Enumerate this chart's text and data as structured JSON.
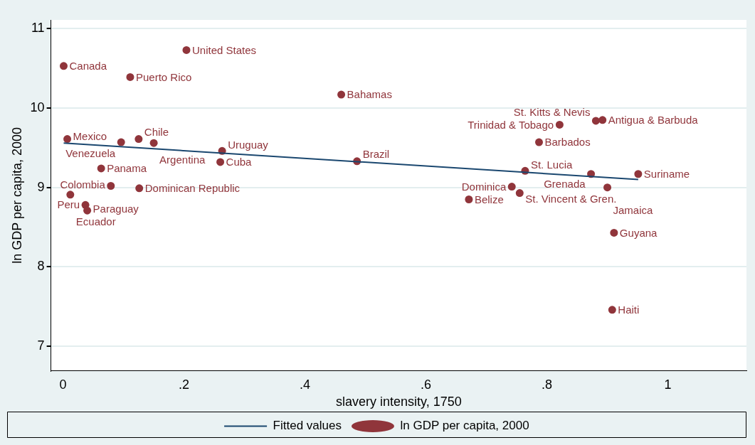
{
  "chart_data": {
    "type": "scatter",
    "xlabel": "slavery intensity, 1750",
    "ylabel": "ln GDP per capita, 2000",
    "xlim": [
      -0.02,
      1.13
    ],
    "ylim": [
      6.69,
      11.11
    ],
    "xticks": [
      {
        "value": 0,
        "label": "0"
      },
      {
        "value": 0.2,
        "label": ".2"
      },
      {
        "value": 0.4,
        "label": ".4"
      },
      {
        "value": 0.6,
        "label": ".6"
      },
      {
        "value": 0.8,
        "label": ".8"
      },
      1
    ],
    "yticks": [
      7,
      8,
      9,
      10,
      11
    ],
    "grid": "y",
    "legend": "bottom",
    "series": [
      {
        "name": "Fitted values",
        "type": "line",
        "marker": "none",
        "color": "#1a476f",
        "x": [
          0.001,
          0.951
        ],
        "values": [
          9.56,
          9.1
        ]
      },
      {
        "name": "ln GDP per capita, 2000",
        "marker": "circle",
        "color": "#90353b",
        "x": [
          0.001,
          0.204,
          0.111,
          0.46,
          0.007,
          0.096,
          0.125,
          0.15,
          0.263,
          0.26,
          0.486,
          0.063,
          0.079,
          0.126,
          0.012,
          0.037,
          0.04,
          0.671,
          0.742,
          0.755,
          0.764,
          0.873,
          0.951,
          0.9,
          0.911,
          0.908,
          0.787,
          0.821,
          0.881,
          0.892
        ],
        "values": [
          10.53,
          10.73,
          10.39,
          10.17,
          9.61,
          9.57,
          9.61,
          9.56,
          9.46,
          9.32,
          9.33,
          9.24,
          9.02,
          8.99,
          8.91,
          8.78,
          8.71,
          8.85,
          9.01,
          8.93,
          9.21,
          9.17,
          9.17,
          9.0,
          8.43,
          7.46,
          9.57,
          9.79,
          9.84,
          9.85
        ]
      }
    ],
    "annotations": [
      {
        "text": "Canada",
        "x": 0.001,
        "y": 10.53
      },
      {
        "text": "United States",
        "x": 0.204,
        "y": 10.73
      },
      {
        "text": "Puerto Rico",
        "x": 0.111,
        "y": 10.39
      },
      {
        "text": "Bahamas",
        "x": 0.46,
        "y": 10.17
      },
      {
        "text": "Mexico",
        "x": 0.007,
        "y": 9.61
      },
      {
        "text": "Venezuela",
        "x": 0.096,
        "y": 9.57
      },
      {
        "text": "Chile",
        "x": 0.125,
        "y": 9.61
      },
      {
        "text": "Argentina",
        "x": 0.15,
        "y": 9.56
      },
      {
        "text": "Uruguay",
        "x": 0.263,
        "y": 9.46
      },
      {
        "text": "Cuba",
        "x": 0.26,
        "y": 9.32
      },
      {
        "text": "Brazil",
        "x": 0.486,
        "y": 9.33
      },
      {
        "text": "Panama",
        "x": 0.063,
        "y": 9.24
      },
      {
        "text": "Colombia",
        "x": 0.079,
        "y": 9.02
      },
      {
        "text": "Dominican Republic",
        "x": 0.126,
        "y": 8.99
      },
      {
        "text": "Ecuador",
        "x": 0.012,
        "y": 8.91
      },
      {
        "text": "Peru",
        "x": 0.037,
        "y": 8.78
      },
      {
        "text": "Paraguay",
        "x": 0.04,
        "y": 8.71
      },
      {
        "text": "Belize",
        "x": 0.671,
        "y": 8.85
      },
      {
        "text": "Dominica",
        "x": 0.742,
        "y": 9.01
      },
      {
        "text": "St. Vincent & Gren.",
        "x": 0.755,
        "y": 8.93
      },
      {
        "text": "St. Lucia",
        "x": 0.764,
        "y": 9.21
      },
      {
        "text": "Grenada",
        "x": 0.873,
        "y": 9.17
      },
      {
        "text": "Suriname",
        "x": 0.951,
        "y": 9.17
      },
      {
        "text": "Jamaica",
        "x": 0.9,
        "y": 9.0
      },
      {
        "text": "Guyana",
        "x": 0.911,
        "y": 8.43
      },
      {
        "text": "Haiti",
        "x": 0.908,
        "y": 7.46
      },
      {
        "text": "Barbados",
        "x": 0.787,
        "y": 9.57
      },
      {
        "text": "Trinidad & Tobago",
        "x": 0.821,
        "y": 9.79
      },
      {
        "text": "St. Kitts & Nevis",
        "x": 0.881,
        "y": 9.84
      },
      {
        "text": "Antigua & Barbuda",
        "x": 0.892,
        "y": 9.85
      }
    ]
  }
}
